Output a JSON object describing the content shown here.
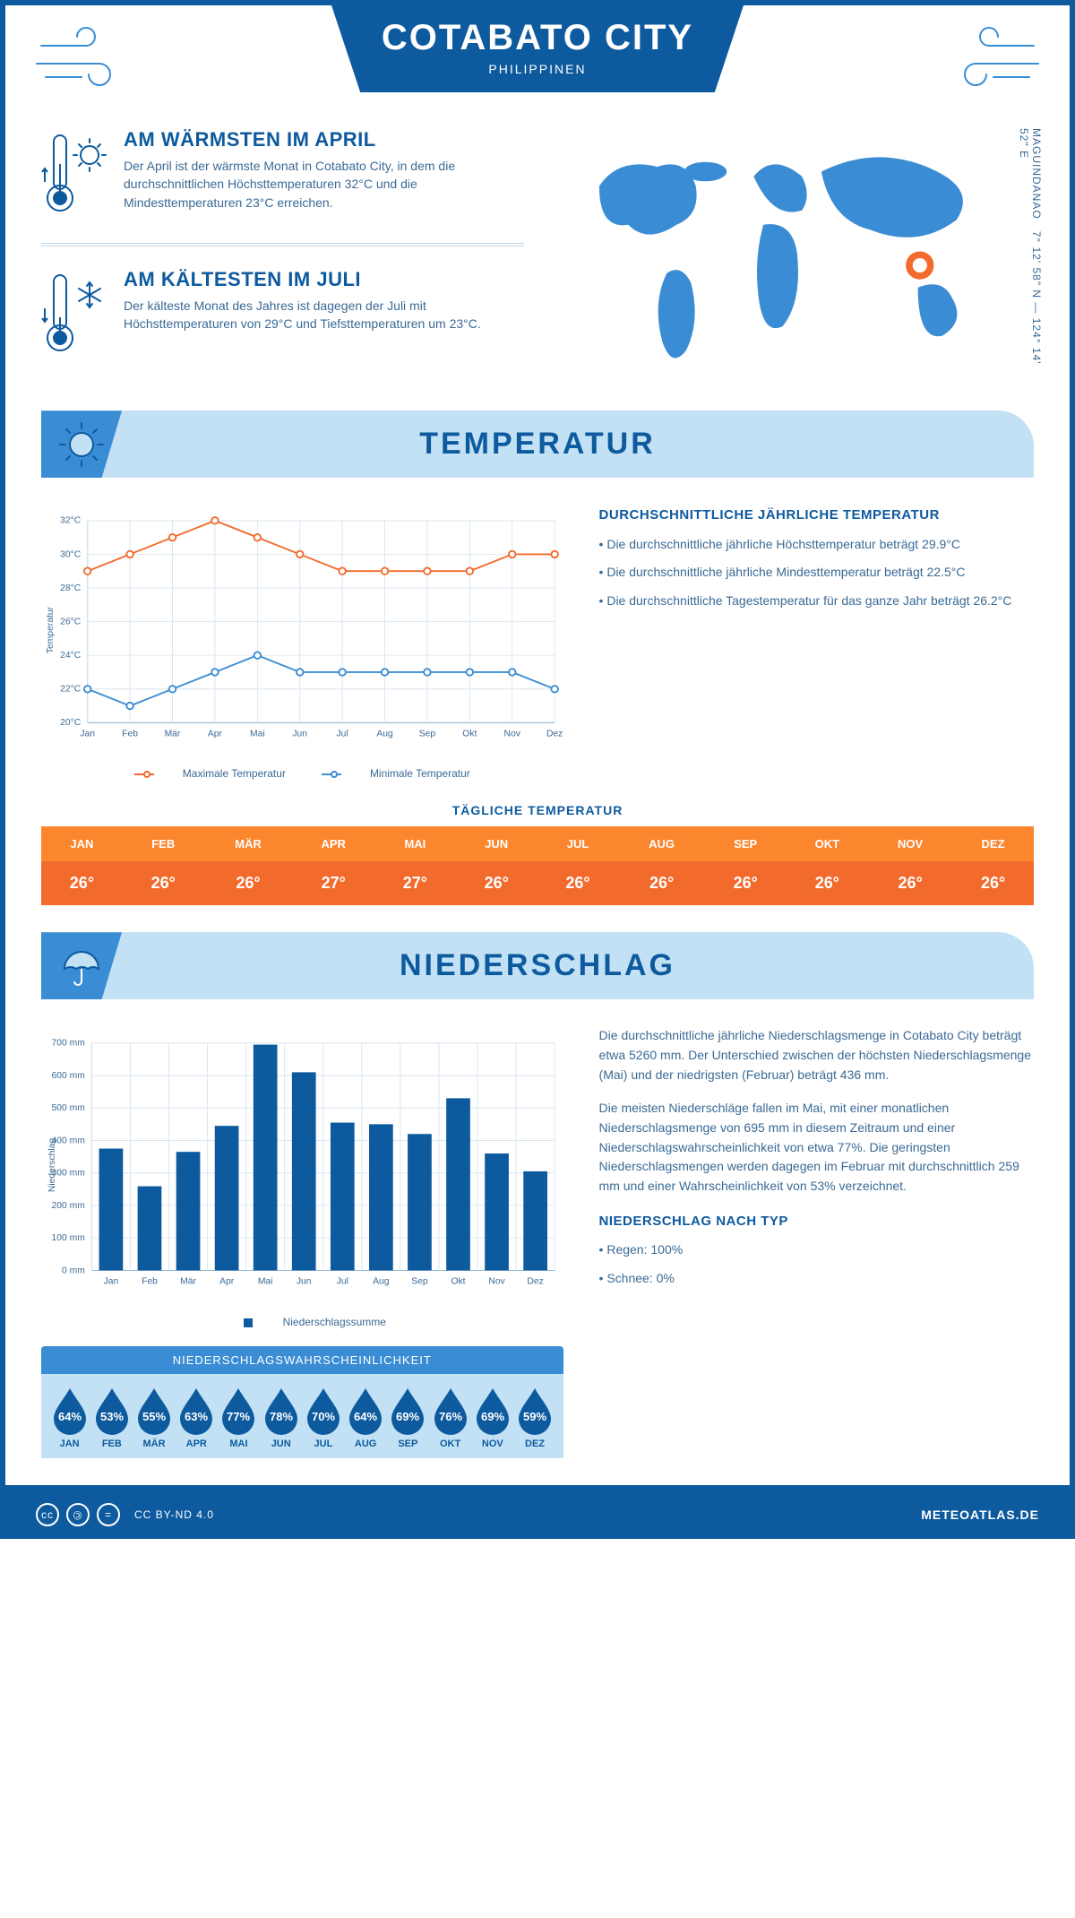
{
  "header": {
    "title": "COTABATO CITY",
    "subtitle": "PHILIPPINEN",
    "coords": "7° 12' 58\" N — 124° 14' 52\" E",
    "region": "MAGUINDANAO"
  },
  "facts": {
    "warmest": {
      "title": "AM WÄRMSTEN IM APRIL",
      "text": "Der April ist der wärmste Monat in Cotabato City, in dem die durchschnittlichen Höchsttemperaturen 32°C und die Mindesttemperaturen 23°C erreichen."
    },
    "coldest": {
      "title": "AM KÄLTESTEN IM JULI",
      "text": "Der kälteste Monat des Jahres ist dagegen der Juli mit Höchsttemperaturen von 29°C und Tiefsttemperaturen um 23°C."
    }
  },
  "map": {
    "marker_color": "#f26a2c",
    "land_color": "#3a8dd4"
  },
  "sections": {
    "temperature": "TEMPERATUR",
    "precipitation": "NIEDERSCHLAG"
  },
  "months_short": [
    "Jan",
    "Feb",
    "Mär",
    "Apr",
    "Mai",
    "Jun",
    "Jul",
    "Aug",
    "Sep",
    "Okt",
    "Nov",
    "Dez"
  ],
  "months_upper": [
    "JAN",
    "FEB",
    "MÄR",
    "APR",
    "MAI",
    "JUN",
    "JUL",
    "AUG",
    "SEP",
    "OKT",
    "NOV",
    "DEZ"
  ],
  "temp_chart": {
    "type": "line",
    "ylabel": "Temperatur",
    "ylim": [
      20,
      32
    ],
    "ytick_step": 2,
    "ytick_suffix": "°C",
    "series": {
      "max": {
        "label": "Maximale Temperatur",
        "color": "#f26a2c",
        "values": [
          29,
          30,
          31,
          32,
          31,
          30,
          29,
          29,
          29,
          29,
          30,
          30
        ]
      },
      "min": {
        "label": "Minimale Temperatur",
        "color": "#3a8dd4",
        "values": [
          22,
          21,
          22,
          23,
          24,
          23,
          23,
          23,
          23,
          23,
          23,
          22
        ]
      }
    },
    "grid_color": "#d9e6f0",
    "marker_fill": "#ffffff",
    "line_width": 2
  },
  "temp_side": {
    "heading": "DURCHSCHNITTLICHE JÄHRLICHE TEMPERATUR",
    "bullets": [
      "• Die durchschnittliche jährliche Höchsttemperatur beträgt 29.9°C",
      "• Die durchschnittliche jährliche Mindesttemperatur beträgt 22.5°C",
      "• Die durchschnittliche Tagestemperatur für das ganze Jahr beträgt 26.2°C"
    ]
  },
  "daily_temp": {
    "title": "TÄGLICHE TEMPERATUR",
    "values": [
      "26°",
      "26°",
      "26°",
      "27°",
      "27°",
      "26°",
      "26°",
      "26°",
      "26°",
      "26°",
      "26°",
      "26°"
    ],
    "header_bg": "#fc862e",
    "cell_bg": "#f26a2c"
  },
  "precip_chart": {
    "type": "bar",
    "ylabel": "Niederschlag",
    "ylim": [
      0,
      700
    ],
    "ytick_step": 100,
    "ytick_suffix": " mm",
    "values": [
      375,
      259,
      365,
      445,
      695,
      610,
      455,
      450,
      420,
      530,
      360,
      305
    ],
    "bar_color": "#0d5a9e",
    "grid_color": "#d9e6f0",
    "legend_label": "Niederschlagssumme"
  },
  "precip_side": {
    "paras": [
      "Die durchschnittliche jährliche Niederschlagsmenge in Cotabato City beträgt etwa 5260 mm. Der Unterschied zwischen der höchsten Niederschlagsmenge (Mai) und der niedrigsten (Februar) beträgt 436 mm.",
      "Die meisten Niederschläge fallen im Mai, mit einer monatlichen Niederschlagsmenge von 695 mm in diesem Zeitraum und einer Niederschlagswahrscheinlichkeit von etwa 77%. Die geringsten Niederschlagsmengen werden dagegen im Februar mit durchschnittlich 259 mm und einer Wahrscheinlichkeit von 53% verzeichnet."
    ],
    "by_type_heading": "NIEDERSCHLAG NACH TYP",
    "by_type": [
      "• Regen: 100%",
      "• Schnee: 0%"
    ]
  },
  "precip_prob": {
    "title": "NIEDERSCHLAGSWAHRSCHEINLICHKEIT",
    "values": [
      "64%",
      "53%",
      "55%",
      "63%",
      "77%",
      "78%",
      "70%",
      "64%",
      "69%",
      "76%",
      "69%",
      "59%"
    ],
    "drop_color": "#0d5a9e"
  },
  "footer": {
    "license": "CC BY-ND 4.0",
    "site": "METEOATLAS.DE"
  },
  "colors": {
    "brand": "#0d5a9e",
    "accent": "#3a8dd4",
    "light": "#c3e1f4",
    "orange": "#f26a2c"
  }
}
